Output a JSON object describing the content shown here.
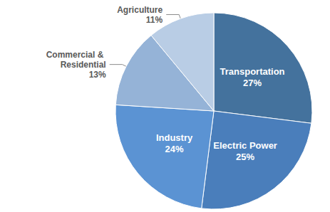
{
  "chart_data": {
    "type": "pie",
    "categories": [
      "Transportation",
      "Electric Power",
      "Industry",
      "Commercial & Residential",
      "Agriculture"
    ],
    "values": [
      27,
      25,
      24,
      13,
      11
    ],
    "value_labels": [
      "27%",
      "25%",
      "24%",
      "13%",
      "11%"
    ],
    "colors": [
      "#44729d",
      "#4a7ebb",
      "#5b93d3",
      "#95b3d7",
      "#b9cde5"
    ],
    "data_labels": true
  }
}
